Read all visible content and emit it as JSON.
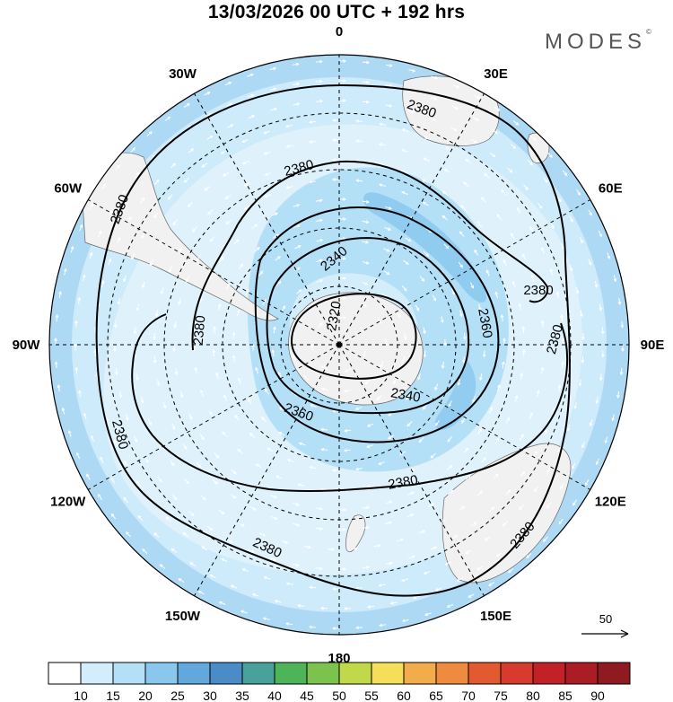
{
  "title": "13/03/2026  00 UTC  + 192 hrs",
  "brand": "MODES",
  "brand_mark": "©",
  "longitude_labels": [
    {
      "text": "0",
      "lon": 0
    },
    {
      "text": "30E",
      "lon": 30
    },
    {
      "text": "60E",
      "lon": 60
    },
    {
      "text": "90E",
      "lon": 90
    },
    {
      "text": "120E",
      "lon": 120
    },
    {
      "text": "150E",
      "lon": 150
    },
    {
      "text": "180",
      "lon": 180
    },
    {
      "text": "150W",
      "lon": -150
    },
    {
      "text": "120W",
      "lon": -120
    },
    {
      "text": "90W",
      "lon": -90
    },
    {
      "text": "60W",
      "lon": -60
    },
    {
      "text": "30W",
      "lon": -30
    }
  ],
  "contours": [
    {
      "value": 2320,
      "label": "2320"
    },
    {
      "value": 2340,
      "label": "2340"
    },
    {
      "value": 2360,
      "label": "2360"
    },
    {
      "value": 2380,
      "label": "2380"
    }
  ],
  "vector_reference": {
    "label": "50"
  },
  "colorbar": {
    "ticks": [
      "10",
      "15",
      "20",
      "25",
      "30",
      "35",
      "40",
      "45",
      "50",
      "55",
      "60",
      "65",
      "70",
      "75",
      "80",
      "85",
      "90"
    ],
    "colors": [
      "#ffffff",
      "#d4edfb",
      "#b4e0f7",
      "#8ac7ee",
      "#62a8dd",
      "#4b8cc7",
      "#49a29a",
      "#4db45a",
      "#7cc34e",
      "#c2d84b",
      "#f4de5a",
      "#f2ac4c",
      "#ef8b3e",
      "#e45a30",
      "#d63b2e",
      "#c22128",
      "#ab1d25",
      "#8f1a1f"
    ]
  },
  "colors": {
    "ocean_light": "#c6e6f8",
    "jet": "#8ac7ee",
    "land": "#f1f1f1",
    "contour": "#000000"
  }
}
